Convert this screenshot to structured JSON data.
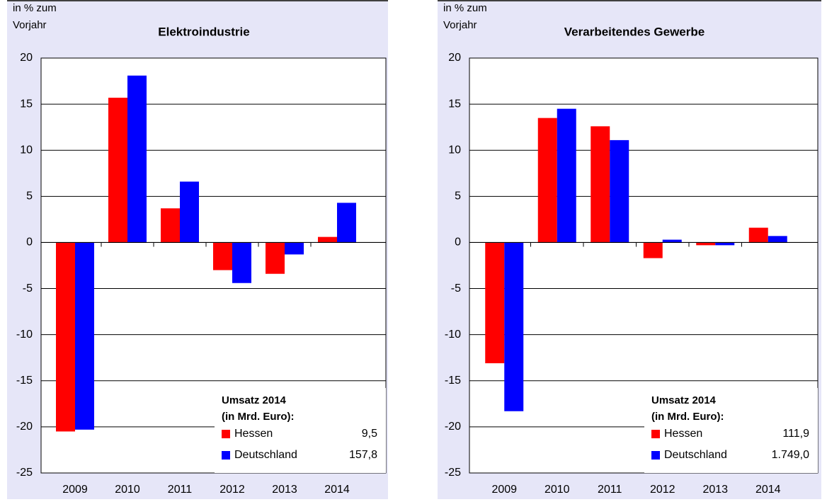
{
  "chart_data": [
    {
      "type": "bar",
      "title": "Elektroindustrie",
      "y_label": [
        "in % zum",
        "Vorjahr"
      ],
      "categories": [
        "2009",
        "2010",
        "2011",
        "2012",
        "2013",
        "2014"
      ],
      "series": [
        {
          "name": "Hessen",
          "color": "#ff0000",
          "values": [
            -20.5,
            15.7,
            3.7,
            -3.0,
            -3.4,
            0.6
          ],
          "revenue": "9,5"
        },
        {
          "name": "Deutschland",
          "color": "#0000ff",
          "values": [
            -20.3,
            18.1,
            6.6,
            -4.4,
            -1.3,
            4.3
          ],
          "revenue": "157,8"
        }
      ],
      "legend_title": [
        "Umsatz 2014",
        "(in Mrd. Euro):"
      ],
      "ylim": [
        -25,
        20
      ],
      "yticks": [
        -25,
        -20,
        -15,
        -10,
        -5,
        0,
        5,
        10,
        15,
        20
      ],
      "grid": true,
      "legend": "lower right"
    },
    {
      "type": "bar",
      "title": "Verarbeitendes Gewerbe",
      "y_label": [
        "in % zum",
        "Vorjahr"
      ],
      "categories": [
        "2009",
        "2010",
        "2011",
        "2012",
        "2013",
        "2014"
      ],
      "series": [
        {
          "name": "Hessen",
          "color": "#ff0000",
          "values": [
            -13.1,
            13.5,
            12.6,
            -1.7,
            -0.3,
            1.6
          ],
          "revenue": "111,9"
        },
        {
          "name": "Deutschland",
          "color": "#0000ff",
          "values": [
            -18.3,
            14.5,
            11.1,
            0.3,
            -0.3,
            0.7
          ],
          "revenue": "1.749,0"
        }
      ],
      "legend_title": [
        "Umsatz 2014",
        "(in Mrd. Euro):"
      ],
      "ylim": [
        -25,
        20
      ],
      "yticks": [
        -25,
        -20,
        -15,
        -10,
        -5,
        0,
        5,
        10,
        15,
        20
      ],
      "grid": true,
      "legend": "lower right"
    }
  ]
}
